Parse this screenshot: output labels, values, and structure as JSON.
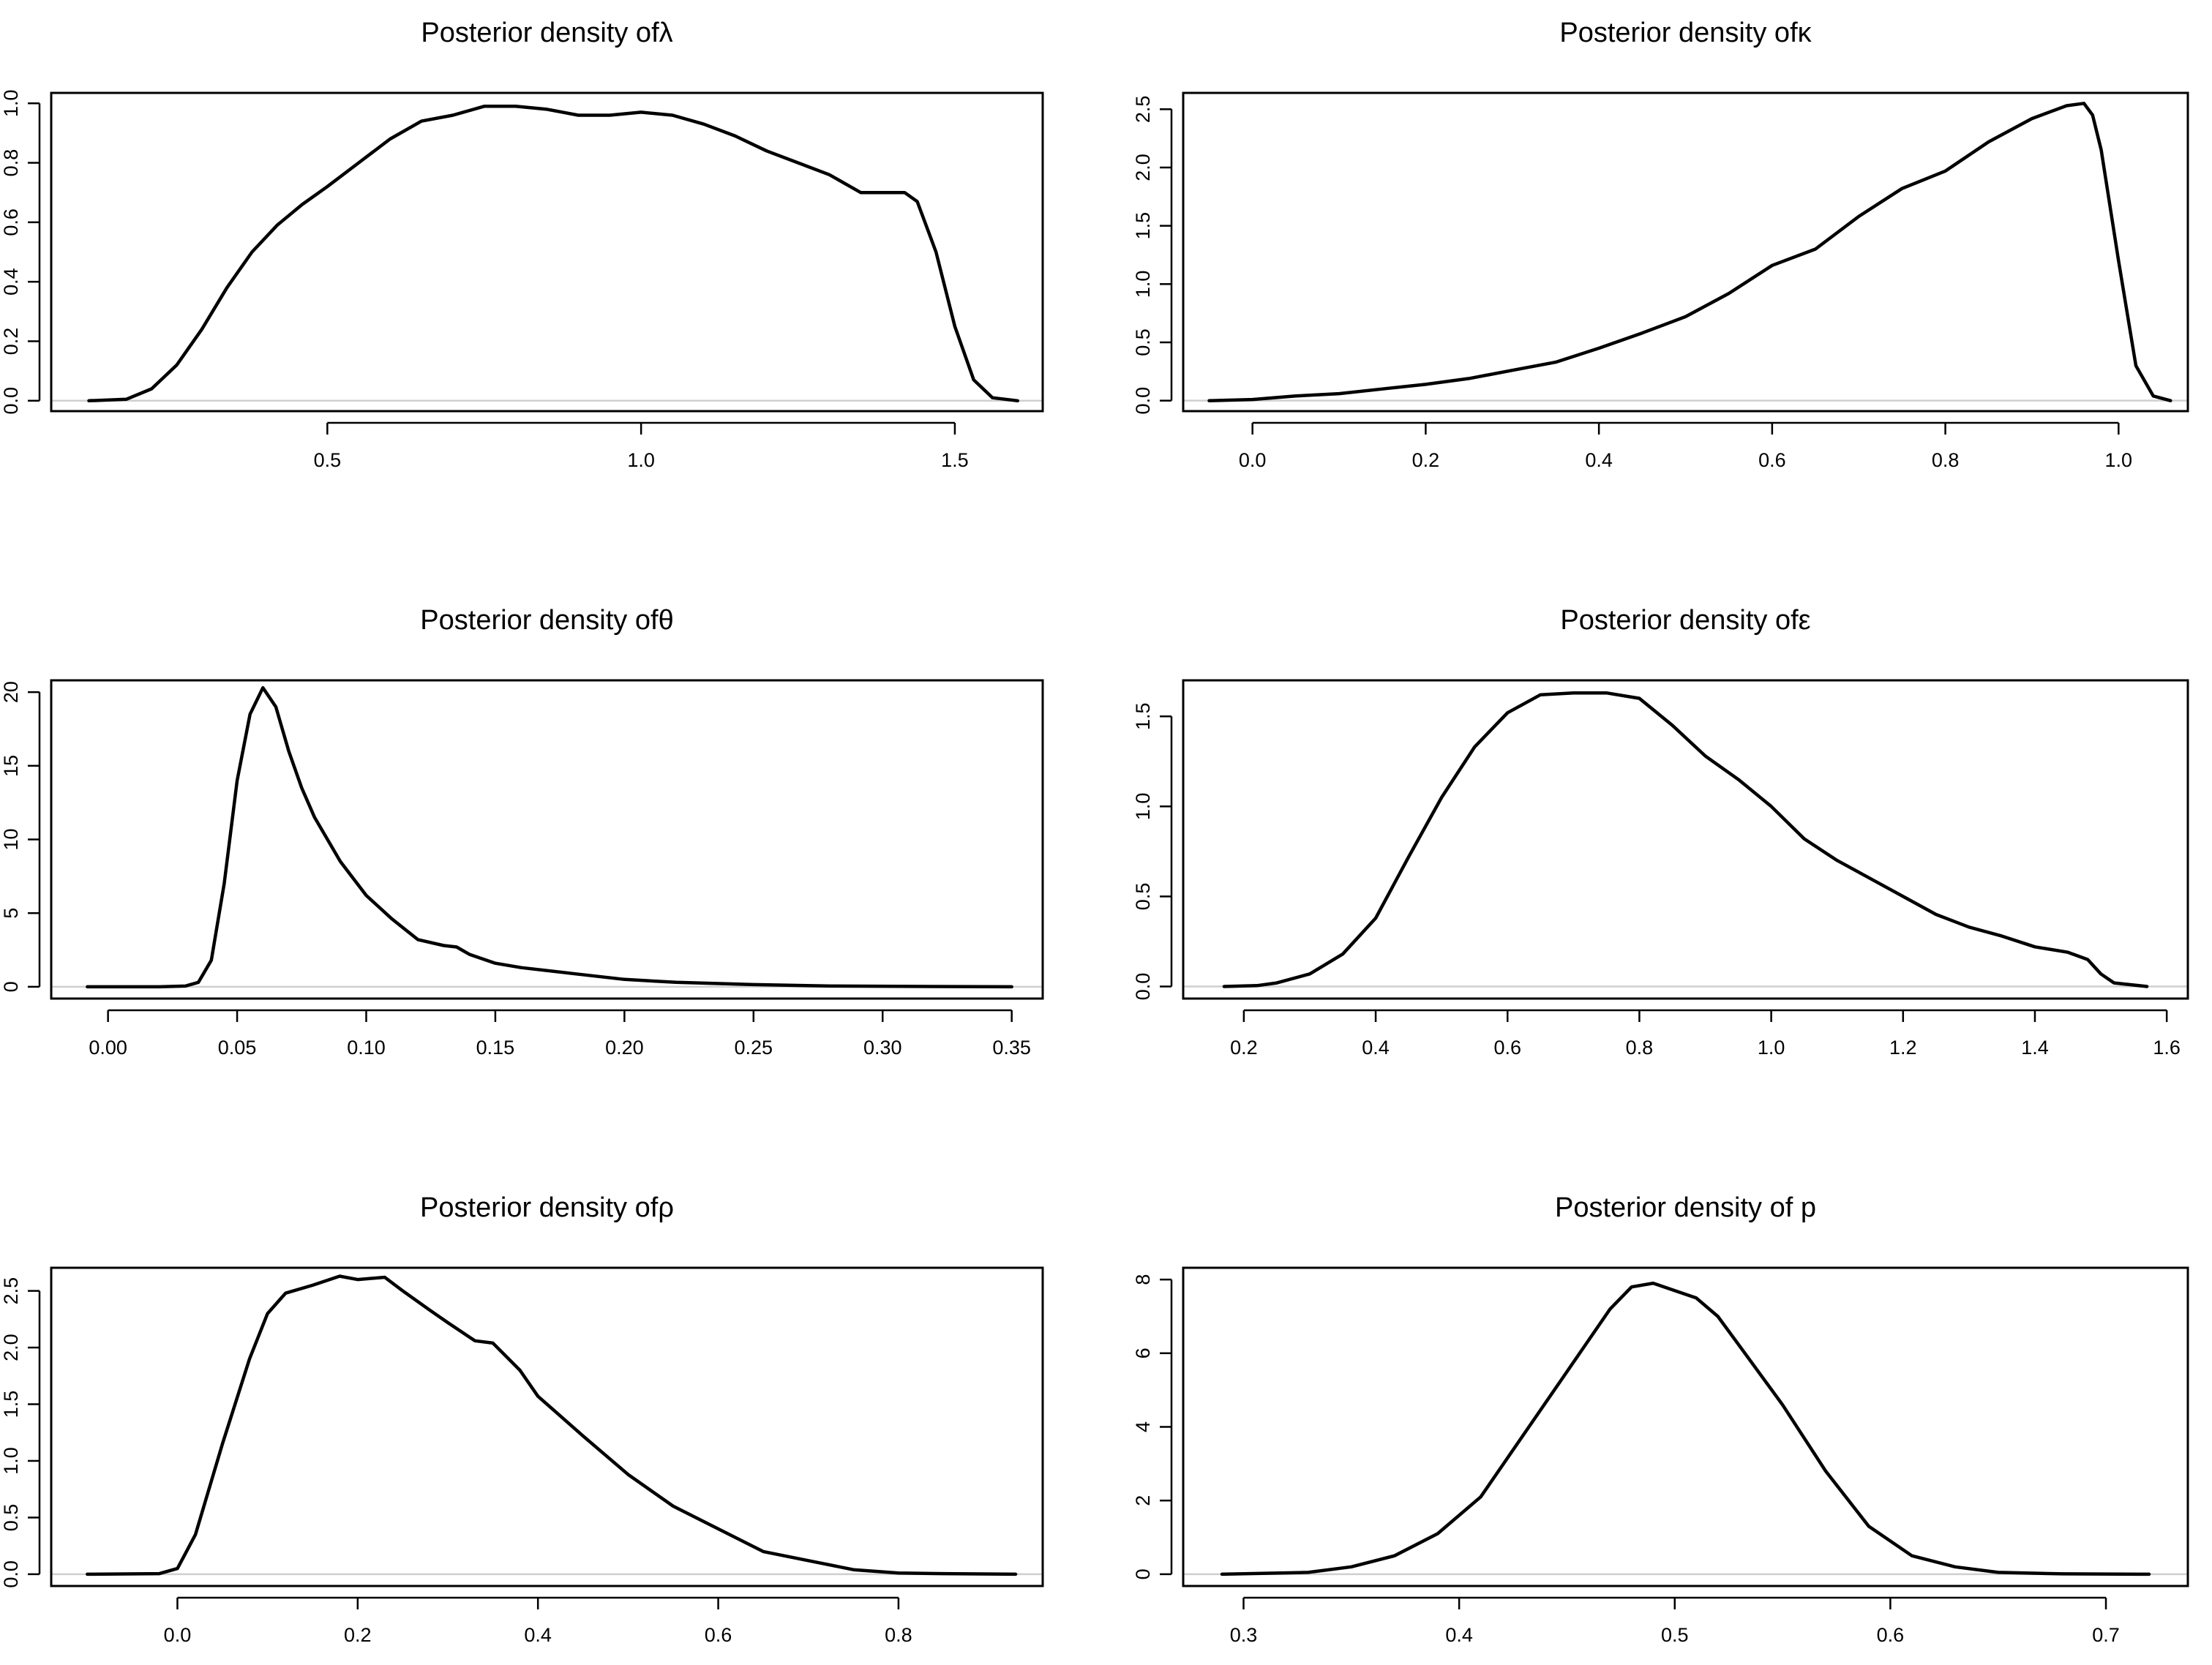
{
  "chart_data": [
    {
      "type": "line",
      "title": "Posterior density of",
      "symbol": "λ",
      "xlabel": "",
      "ylabel": "",
      "xlim": [
        0.06,
        1.64
      ],
      "ylim": [
        -0.035,
        1.035
      ],
      "xticks": [
        0.5,
        1.0,
        1.5
      ],
      "xtick_labels": [
        "0.5",
        "1.0",
        "1.5"
      ],
      "yticks": [
        0.0,
        0.2,
        0.4,
        0.6,
        0.8,
        1.0
      ],
      "ytick_labels": [
        "0.0",
        "0.2",
        "0.4",
        "0.6",
        "0.8",
        "1.0"
      ],
      "x": [
        0.12,
        0.18,
        0.22,
        0.26,
        0.3,
        0.34,
        0.38,
        0.42,
        0.46,
        0.5,
        0.55,
        0.6,
        0.65,
        0.7,
        0.75,
        0.8,
        0.85,
        0.9,
        0.95,
        1.0,
        1.05,
        1.1,
        1.15,
        1.2,
        1.25,
        1.3,
        1.35,
        1.4,
        1.42,
        1.44,
        1.47,
        1.5,
        1.53,
        1.56,
        1.6
      ],
      "y": [
        0.0,
        0.005,
        0.04,
        0.12,
        0.24,
        0.38,
        0.5,
        0.59,
        0.66,
        0.72,
        0.8,
        0.88,
        0.94,
        0.96,
        0.99,
        0.99,
        0.98,
        0.96,
        0.96,
        0.97,
        0.96,
        0.93,
        0.89,
        0.84,
        0.8,
        0.76,
        0.7,
        0.7,
        0.7,
        0.67,
        0.5,
        0.25,
        0.07,
        0.01,
        0.0
      ]
    },
    {
      "type": "line",
      "title": "Posterior density of",
      "symbol": "κ",
      "xlabel": "",
      "ylabel": "",
      "xlim": [
        -0.08,
        1.08
      ],
      "ylim": [
        -0.09,
        2.64
      ],
      "xticks": [
        0.0,
        0.2,
        0.4,
        0.6,
        0.8,
        1.0
      ],
      "xtick_labels": [
        "0.0",
        "0.2",
        "0.4",
        "0.6",
        "0.8",
        "1.0"
      ],
      "yticks": [
        0.0,
        0.5,
        1.0,
        1.5,
        2.0,
        2.5
      ],
      "ytick_labels": [
        "0.0",
        "0.5",
        "1.0",
        "1.5",
        "2.0",
        "2.5"
      ],
      "x": [
        -0.05,
        0.0,
        0.05,
        0.1,
        0.15,
        0.2,
        0.25,
        0.3,
        0.35,
        0.4,
        0.45,
        0.5,
        0.55,
        0.6,
        0.65,
        0.7,
        0.75,
        0.8,
        0.85,
        0.9,
        0.94,
        0.96,
        0.97,
        0.98,
        1.0,
        1.02,
        1.04,
        1.06
      ],
      "y": [
        0.0,
        0.01,
        0.04,
        0.06,
        0.1,
        0.14,
        0.19,
        0.26,
        0.33,
        0.45,
        0.58,
        0.72,
        0.92,
        1.16,
        1.3,
        1.58,
        1.82,
        1.97,
        2.22,
        2.42,
        2.53,
        2.55,
        2.45,
        2.15,
        1.2,
        0.3,
        0.04,
        0.0
      ]
    },
    {
      "type": "line",
      "title": "Posterior density of",
      "symbol": "θ",
      "xlabel": "",
      "ylabel": "",
      "xlim": [
        -0.022,
        0.362
      ],
      "ylim": [
        -0.8,
        20.8
      ],
      "xticks": [
        0.0,
        0.05,
        0.1,
        0.15,
        0.2,
        0.25,
        0.3,
        0.35
      ],
      "xtick_labels": [
        "0.00",
        "0.05",
        "0.10",
        "0.15",
        "0.20",
        "0.25",
        "0.30",
        "0.35"
      ],
      "yticks": [
        0,
        5,
        10,
        15,
        20
      ],
      "ytick_labels": [
        "0",
        "5",
        "10",
        "15",
        "20"
      ],
      "x": [
        -0.008,
        0.02,
        0.03,
        0.035,
        0.04,
        0.045,
        0.05,
        0.055,
        0.06,
        0.065,
        0.07,
        0.075,
        0.08,
        0.09,
        0.1,
        0.11,
        0.12,
        0.13,
        0.135,
        0.14,
        0.15,
        0.16,
        0.18,
        0.2,
        0.22,
        0.25,
        0.28,
        0.35
      ],
      "y": [
        0.0,
        0.0,
        0.05,
        0.3,
        1.8,
        7.0,
        14.0,
        18.5,
        20.3,
        19.0,
        16.0,
        13.5,
        11.5,
        8.5,
        6.2,
        4.6,
        3.2,
        2.8,
        2.7,
        2.2,
        1.6,
        1.3,
        0.9,
        0.5,
        0.3,
        0.15,
        0.05,
        0.0
      ]
    },
    {
      "type": "line",
      "title": "Posterior density of",
      "symbol": "ε",
      "xlabel": "",
      "ylabel": "",
      "xlim": [
        0.108,
        1.632
      ],
      "ylim": [
        -0.067,
        1.7
      ],
      "xticks": [
        0.2,
        0.4,
        0.6,
        0.8,
        1.0,
        1.2,
        1.4,
        1.6
      ],
      "xtick_labels": [
        "0.2",
        "0.4",
        "0.6",
        "0.8",
        "1.0",
        "1.2",
        "1.4",
        "1.6"
      ],
      "yticks": [
        0.0,
        0.5,
        1.0,
        1.5
      ],
      "ytick_labels": [
        "0.0",
        "0.5",
        "1.0",
        "1.5"
      ],
      "x": [
        0.17,
        0.22,
        0.25,
        0.3,
        0.35,
        0.4,
        0.45,
        0.5,
        0.55,
        0.6,
        0.65,
        0.7,
        0.75,
        0.8,
        0.85,
        0.9,
        0.95,
        1.0,
        1.05,
        1.1,
        1.15,
        1.2,
        1.25,
        1.3,
        1.35,
        1.4,
        1.45,
        1.48,
        1.5,
        1.52,
        1.57
      ],
      "y": [
        0.0,
        0.005,
        0.02,
        0.07,
        0.18,
        0.38,
        0.72,
        1.05,
        1.33,
        1.52,
        1.62,
        1.63,
        1.63,
        1.6,
        1.45,
        1.28,
        1.15,
        1.0,
        0.82,
        0.7,
        0.6,
        0.5,
        0.4,
        0.33,
        0.28,
        0.22,
        0.19,
        0.15,
        0.07,
        0.02,
        0.0
      ]
    },
    {
      "type": "line",
      "title": "Posterior density of",
      "symbol": "ρ",
      "xlabel": "",
      "ylabel": "",
      "xlim": [
        -0.14,
        0.96
      ],
      "ylim": [
        -0.104,
        2.704
      ],
      "xticks": [
        0.0,
        0.2,
        0.4,
        0.6,
        0.8
      ],
      "xtick_labels": [
        "0.0",
        "0.2",
        "0.4",
        "0.6",
        "0.8"
      ],
      "yticks": [
        0.0,
        0.5,
        1.0,
        1.5,
        2.0,
        2.5
      ],
      "ytick_labels": [
        "0.0",
        "0.5",
        "1.0",
        "1.5",
        "2.0",
        "2.5"
      ],
      "x": [
        -0.1,
        -0.02,
        0.0,
        0.02,
        0.05,
        0.08,
        0.1,
        0.12,
        0.15,
        0.18,
        0.2,
        0.23,
        0.25,
        0.28,
        0.3,
        0.33,
        0.35,
        0.38,
        0.4,
        0.45,
        0.5,
        0.55,
        0.6,
        0.65,
        0.7,
        0.75,
        0.8,
        0.85,
        0.93
      ],
      "y": [
        0.0,
        0.005,
        0.05,
        0.35,
        1.15,
        1.9,
        2.3,
        2.48,
        2.55,
        2.63,
        2.6,
        2.62,
        2.5,
        2.33,
        2.22,
        2.06,
        2.04,
        1.8,
        1.57,
        1.22,
        0.88,
        0.6,
        0.4,
        0.2,
        0.12,
        0.04,
        0.01,
        0.005,
        0.0
      ]
    },
    {
      "type": "line",
      "title": "Posterior density of p",
      "symbol": "",
      "xlabel": "",
      "ylabel": "",
      "xlim": [
        0.272,
        0.738
      ],
      "ylim": [
        -0.32,
        8.32
      ],
      "xticks": [
        0.3,
        0.4,
        0.5,
        0.6,
        0.7
      ],
      "xtick_labels": [
        "0.3",
        "0.4",
        "0.5",
        "0.6",
        "0.7"
      ],
      "yticks": [
        0,
        2,
        4,
        6,
        8
      ],
      "ytick_labels": [
        "0",
        "2",
        "4",
        "6",
        "8"
      ],
      "x": [
        0.29,
        0.33,
        0.35,
        0.37,
        0.39,
        0.41,
        0.43,
        0.45,
        0.47,
        0.48,
        0.49,
        0.5,
        0.51,
        0.52,
        0.53,
        0.55,
        0.57,
        0.59,
        0.61,
        0.63,
        0.65,
        0.68,
        0.72
      ],
      "y": [
        0.0,
        0.05,
        0.2,
        0.5,
        1.1,
        2.1,
        3.8,
        5.5,
        7.2,
        7.8,
        7.9,
        7.7,
        7.5,
        7.0,
        6.2,
        4.6,
        2.8,
        1.3,
        0.5,
        0.2,
        0.05,
        0.01,
        0.0
      ]
    }
  ]
}
